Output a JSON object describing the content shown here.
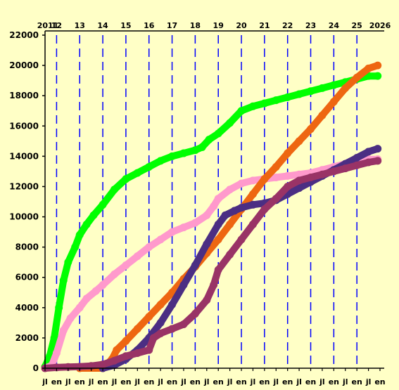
{
  "chart_data": {
    "type": "line",
    "title": "",
    "xlabel": "",
    "ylabel": "",
    "xlim": [
      2011.5,
      2026.0
    ],
    "ylim": [
      0,
      22000
    ],
    "grid": "vertical dashed lines at each new year",
    "background": "#ffffc6",
    "grid_color": "#0000ff",
    "top_ticks": [
      "2011",
      "12",
      "13",
      "14",
      "15",
      "16",
      "17",
      "18",
      "19",
      "20",
      "21",
      "22",
      "23",
      "24",
      "25",
      "2026"
    ],
    "bottom_ticks": [
      "jl",
      "en",
      "jl",
      "en",
      "jl",
      "en",
      "jl",
      "en",
      "jl",
      "en",
      "jl",
      "en",
      "jl",
      "en",
      "jl",
      "en",
      "jl",
      "en",
      "jl",
      "en",
      "jl",
      "en",
      "jl",
      "en",
      "jl",
      "en",
      "jl",
      "en",
      "jl",
      "en"
    ],
    "y_ticks": [
      0,
      2000,
      4000,
      6000,
      8000,
      10000,
      12000,
      14000,
      16000,
      18000,
      20000,
      22000
    ],
    "series": [
      {
        "color": "#00ff00",
        "points": [
          [
            2011.5,
            100
          ],
          [
            2011.7,
            800
          ],
          [
            2011.9,
            2000
          ],
          [
            2012.1,
            4000
          ],
          [
            2012.3,
            5800
          ],
          [
            2012.5,
            7000
          ],
          [
            2012.8,
            8000
          ],
          [
            2013.0,
            8800
          ],
          [
            2013.3,
            9500
          ],
          [
            2013.6,
            10100
          ],
          [
            2014.0,
            10800
          ],
          [
            2014.5,
            11800
          ],
          [
            2015.0,
            12500
          ],
          [
            2015.5,
            12900
          ],
          [
            2016.0,
            13300
          ],
          [
            2016.5,
            13700
          ],
          [
            2017.0,
            14000
          ],
          [
            2017.5,
            14200
          ],
          [
            2018.0,
            14400
          ],
          [
            2018.3,
            14600
          ],
          [
            2018.6,
            15100
          ],
          [
            2019.0,
            15500
          ],
          [
            2019.5,
            16200
          ],
          [
            2020.0,
            17000
          ],
          [
            2020.5,
            17300
          ],
          [
            2021.0,
            17500
          ],
          [
            2021.5,
            17700
          ],
          [
            2022.0,
            17900
          ],
          [
            2022.5,
            18100
          ],
          [
            2023.0,
            18300
          ],
          [
            2023.5,
            18500
          ],
          [
            2024.0,
            18700
          ],
          [
            2024.5,
            18900
          ],
          [
            2025.0,
            19100
          ],
          [
            2025.5,
            19300
          ],
          [
            2025.9,
            19300
          ]
        ]
      },
      {
        "color": "#ff99cc",
        "points": [
          [
            2011.5,
            0
          ],
          [
            2011.8,
            200
          ],
          [
            2012.0,
            1000
          ],
          [
            2012.3,
            2500
          ],
          [
            2012.6,
            3300
          ],
          [
            2013.0,
            4000
          ],
          [
            2013.3,
            4600
          ],
          [
            2013.7,
            5100
          ],
          [
            2014.0,
            5500
          ],
          [
            2014.5,
            6200
          ],
          [
            2015.0,
            6800
          ],
          [
            2015.5,
            7400
          ],
          [
            2016.0,
            8000
          ],
          [
            2016.5,
            8500
          ],
          [
            2017.0,
            9000
          ],
          [
            2017.5,
            9300
          ],
          [
            2018.0,
            9600
          ],
          [
            2018.5,
            10100
          ],
          [
            2018.8,
            10700
          ],
          [
            2019.0,
            11200
          ],
          [
            2019.5,
            11800
          ],
          [
            2020.0,
            12200
          ],
          [
            2020.5,
            12400
          ],
          [
            2021.0,
            12500
          ],
          [
            2021.5,
            12600
          ],
          [
            2022.0,
            12700
          ],
          [
            2022.5,
            12800
          ],
          [
            2023.0,
            12900
          ],
          [
            2023.5,
            13100
          ],
          [
            2024.0,
            13300
          ],
          [
            2024.5,
            13500
          ],
          [
            2025.0,
            13700
          ],
          [
            2025.5,
            13800
          ],
          [
            2025.9,
            13800
          ]
        ]
      },
      {
        "color": "#ee6611",
        "points": [
          [
            2013.0,
            0
          ],
          [
            2014.0,
            0
          ],
          [
            2014.4,
            600
          ],
          [
            2014.6,
            1200
          ],
          [
            2015.0,
            1800
          ],
          [
            2015.5,
            2600
          ],
          [
            2016.0,
            3400
          ],
          [
            2016.5,
            4200
          ],
          [
            2017.0,
            5000
          ],
          [
            2017.5,
            5900
          ],
          [
            2018.0,
            6700
          ],
          [
            2018.5,
            7600
          ],
          [
            2019.0,
            8500
          ],
          [
            2019.5,
            9500
          ],
          [
            2020.0,
            10500
          ],
          [
            2020.5,
            11500
          ],
          [
            2021.0,
            12500
          ],
          [
            2021.5,
            13300
          ],
          [
            2022.0,
            14200
          ],
          [
            2022.5,
            15000
          ],
          [
            2023.0,
            15800
          ],
          [
            2023.5,
            16700
          ],
          [
            2024.0,
            17600
          ],
          [
            2024.5,
            18500
          ],
          [
            2025.0,
            19200
          ],
          [
            2025.5,
            19800
          ],
          [
            2025.9,
            20000
          ]
        ]
      },
      {
        "color": "#4b2e83",
        "points": [
          [
            2014.0,
            0
          ],
          [
            2014.5,
            200
          ],
          [
            2015.0,
            600
          ],
          [
            2015.5,
            1200
          ],
          [
            2016.0,
            2000
          ],
          [
            2016.5,
            3000
          ],
          [
            2017.0,
            4200
          ],
          [
            2017.5,
            5500
          ],
          [
            2018.0,
            6800
          ],
          [
            2018.5,
            8200
          ],
          [
            2019.0,
            9500
          ],
          [
            2019.3,
            10100
          ],
          [
            2019.7,
            10400
          ],
          [
            2020.0,
            10600
          ],
          [
            2020.5,
            10800
          ],
          [
            2021.0,
            10900
          ],
          [
            2021.5,
            11100
          ],
          [
            2022.0,
            11500
          ],
          [
            2022.5,
            11900
          ],
          [
            2023.0,
            12300
          ],
          [
            2023.5,
            12700
          ],
          [
            2024.0,
            13100
          ],
          [
            2024.5,
            13500
          ],
          [
            2025.0,
            13900
          ],
          [
            2025.5,
            14300
          ],
          [
            2025.9,
            14500
          ]
        ]
      },
      {
        "color": "#993366",
        "points": [
          [
            2011.5,
            0
          ],
          [
            2012.0,
            50
          ],
          [
            2012.5,
            80
          ],
          [
            2013.0,
            100
          ],
          [
            2013.5,
            150
          ],
          [
            2014.0,
            250
          ],
          [
            2014.5,
            500
          ],
          [
            2015.0,
            800
          ],
          [
            2015.5,
            1000
          ],
          [
            2016.0,
            1200
          ],
          [
            2016.2,
            2000
          ],
          [
            2016.5,
            2300
          ],
          [
            2017.0,
            2600
          ],
          [
            2017.5,
            2900
          ],
          [
            2018.0,
            3600
          ],
          [
            2018.5,
            4500
          ],
          [
            2018.8,
            5500
          ],
          [
            2019.0,
            6500
          ],
          [
            2019.5,
            7500
          ],
          [
            2020.0,
            8500
          ],
          [
            2020.5,
            9500
          ],
          [
            2021.0,
            10500
          ],
          [
            2021.5,
            11200
          ],
          [
            2022.0,
            12000
          ],
          [
            2022.5,
            12400
          ],
          [
            2023.0,
            12600
          ],
          [
            2023.5,
            12800
          ],
          [
            2024.0,
            13000
          ],
          [
            2024.5,
            13200
          ],
          [
            2025.0,
            13400
          ],
          [
            2025.5,
            13600
          ],
          [
            2025.9,
            13700
          ]
        ]
      }
    ]
  }
}
